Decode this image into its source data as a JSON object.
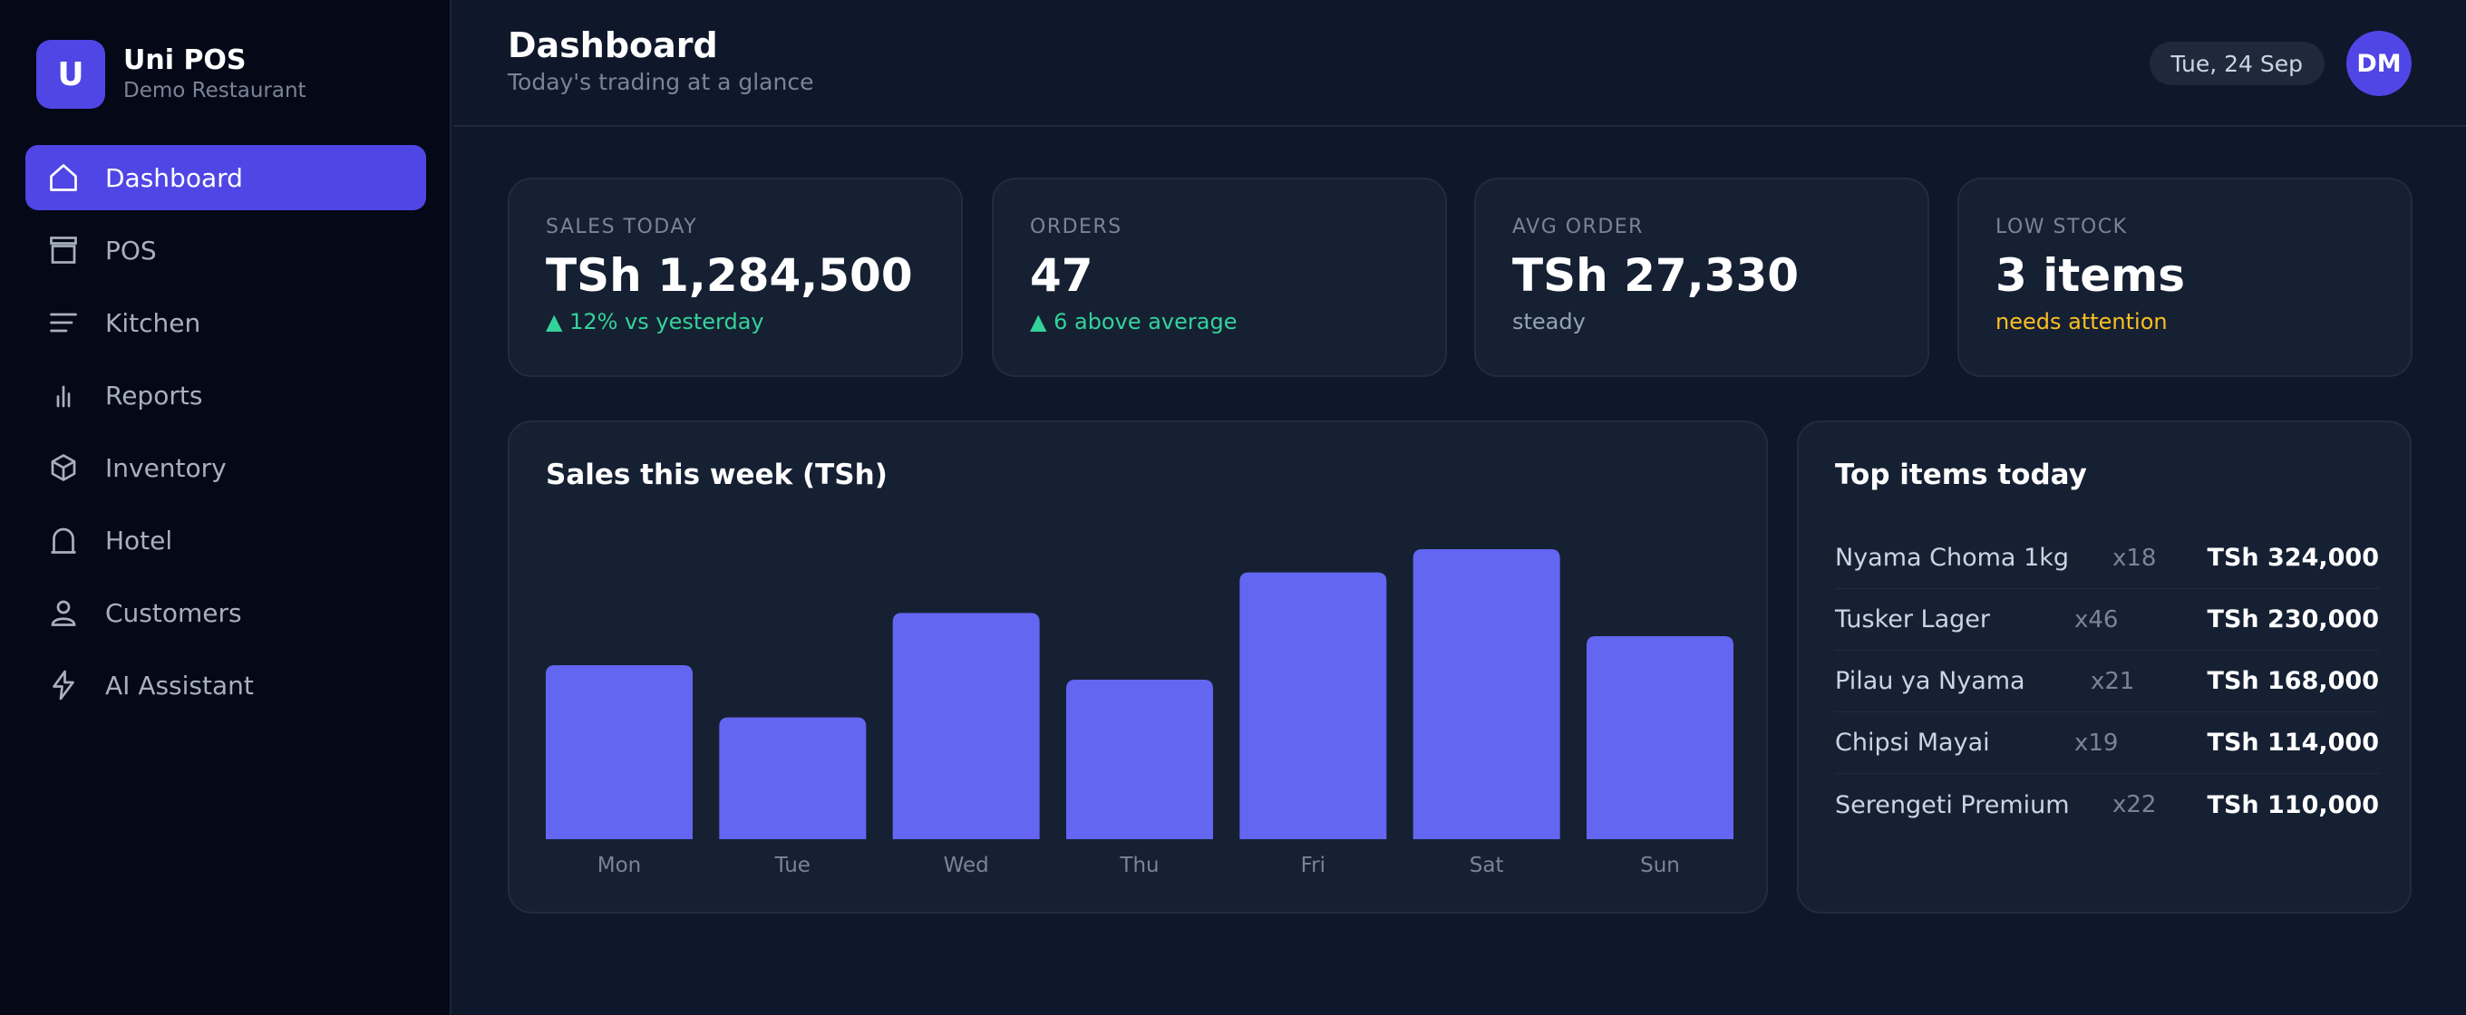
{
  "brand": {
    "logo_letter": "U",
    "name": "Uni POS",
    "subtitle": "Demo Restaurant"
  },
  "nav": {
    "items": [
      {
        "label": "Dashboard",
        "icon": "home-icon",
        "active": true
      },
      {
        "label": "POS",
        "icon": "register-icon",
        "active": false
      },
      {
        "label": "Kitchen",
        "icon": "list-icon",
        "active": false
      },
      {
        "label": "Reports",
        "icon": "bar-chart-icon",
        "active": false
      },
      {
        "label": "Inventory",
        "icon": "box-icon",
        "active": false
      },
      {
        "label": "Hotel",
        "icon": "bell-icon",
        "active": false
      },
      {
        "label": "Customers",
        "icon": "user-icon",
        "active": false
      },
      {
        "label": "AI Assistant",
        "icon": "lightning-icon",
        "active": false
      }
    ]
  },
  "header": {
    "title": "Dashboard",
    "subtitle": "Today's trading at a glance",
    "date": "Tue, 24 Sep",
    "avatar_initials": "DM"
  },
  "kpis": [
    {
      "label": "SALES TODAY",
      "value": "TSh 1,284,500",
      "note": "▲ 12% vs yesterday",
      "tone": "up"
    },
    {
      "label": "ORDERS",
      "value": "47",
      "note": "▲ 6 above average",
      "tone": "up"
    },
    {
      "label": "AVG ORDER",
      "value": "TSh 27,330",
      "note": "steady",
      "tone": "muted"
    },
    {
      "label": "LOW STOCK",
      "value": "3 items",
      "note": "needs attention",
      "tone": "warn"
    }
  ],
  "chart_card": {
    "title": "Sales this week (TSh)"
  },
  "chart_data": {
    "type": "bar",
    "title": "Sales this week (TSh)",
    "categories": [
      "Mon",
      "Tue",
      "Wed",
      "Thu",
      "Fri",
      "Sat",
      "Sun"
    ],
    "values": [
      60,
      42,
      78,
      55,
      92,
      100,
      70
    ],
    "ylim": [
      0,
      100
    ],
    "grid": false,
    "bar_color": "#6366f1"
  },
  "top_items": {
    "title": "Top items today",
    "rows": [
      {
        "name": "Nyama Choma 1kg",
        "qty": "x18",
        "amount": "TSh 324,000"
      },
      {
        "name": "Tusker Lager",
        "qty": "x46",
        "amount": "TSh 230,000"
      },
      {
        "name": "Pilau ya Nyama",
        "qty": "x21",
        "amount": "TSh 168,000"
      },
      {
        "name": "Chipsi Mayai",
        "qty": "x19",
        "amount": "TSh 114,000"
      },
      {
        "name": "Serengeti Premium",
        "qty": "x22",
        "amount": "TSh 110,000"
      }
    ]
  },
  "colors": {
    "accent": "#4f46e5",
    "bar": "#6366f1",
    "positive": "#34d399",
    "warning": "#fbbf24"
  }
}
